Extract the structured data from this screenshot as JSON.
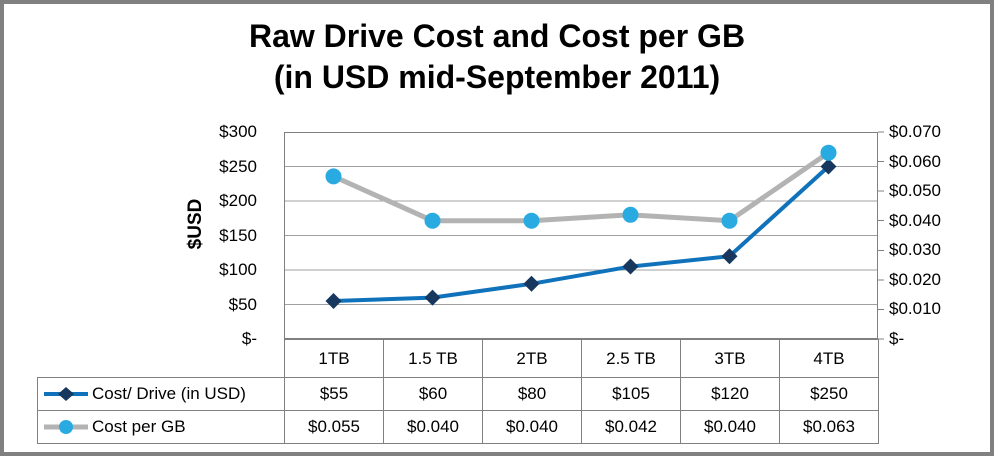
{
  "chart": {
    "title_line1": "Raw Drive Cost and Cost per GB",
    "title_line2": "(in USD mid-September 2011)",
    "left_axis": {
      "title": "$USD",
      "ticks": [
        "$300",
        "$250",
        "$200",
        "$150",
        "$100",
        "$50",
        "$-"
      ]
    },
    "right_axis": {
      "ticks": [
        "$0.070",
        "$0.060",
        "$0.050",
        "$0.040",
        "$0.030",
        "$0.020",
        "$0.010",
        "$-"
      ]
    }
  },
  "chart_data": {
    "type": "line",
    "title": "Raw Drive Cost and Cost per GB (in USD mid-September 2011)",
    "categories": [
      "1TB",
      "1.5 TB",
      "2TB",
      "2.5 TB",
      "3TB",
      "4TB"
    ],
    "series": [
      {
        "id": "cost-drive",
        "name": "Cost/ Drive (in USD)",
        "axis": "left",
        "values": [
          55,
          60,
          80,
          105,
          120,
          250
        ],
        "labels": [
          "$55",
          "$60",
          "$80",
          "$105",
          "$120",
          "$250"
        ],
        "line_color": "#1072BA",
        "marker": "diamond",
        "marker_color": "#17375E"
      },
      {
        "id": "cost-per-gb",
        "name": "Cost per GB",
        "axis": "right",
        "values": [
          0.055,
          0.04,
          0.04,
          0.042,
          0.04,
          0.063
        ],
        "labels": [
          "$0.055",
          "$0.040",
          "$0.040",
          "$0.042",
          "$0.040",
          "$0.063"
        ],
        "line_color": "#B3B3B3",
        "marker": "circle",
        "marker_color": "#29ABE2"
      }
    ],
    "left_ylim": [
      0,
      300
    ],
    "right_ylim": [
      0,
      0.07
    ],
    "grid": true,
    "legend_position": "table-left",
    "colors": {
      "plot_border": "#808080",
      "gridline": "#A0A0A0",
      "table_border": "#808080",
      "outer_frame": "#808080"
    }
  }
}
